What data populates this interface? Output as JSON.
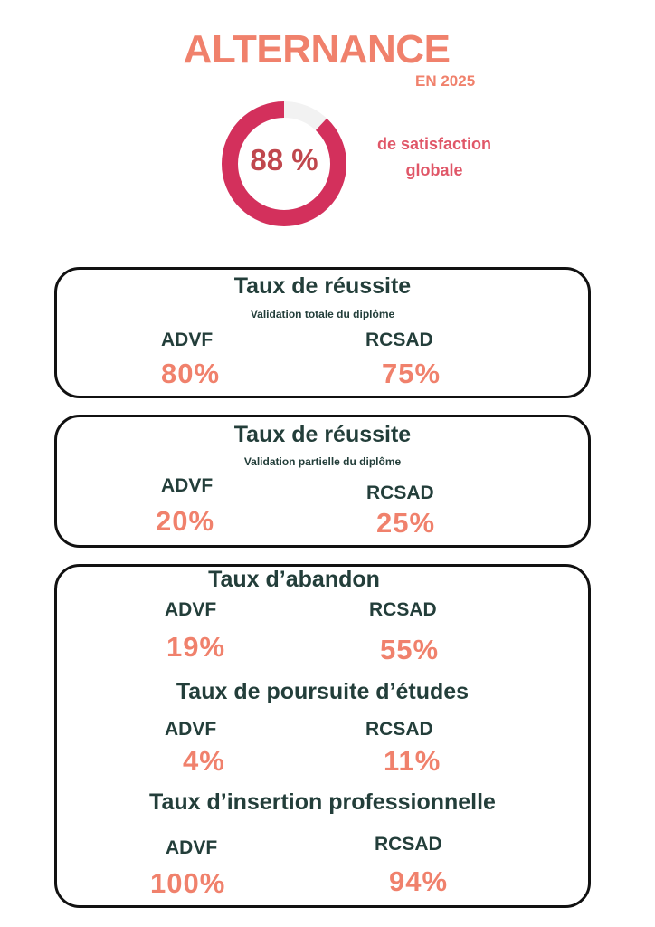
{
  "header": {
    "title": "ALTERNANCE",
    "year": "EN 2025"
  },
  "satisfaction": {
    "value": "88 %",
    "percent": 88,
    "label_line1": "de satisfaction",
    "label_line2": "globale",
    "color_ring": "#d3305c",
    "color_track": "#f2f2f2"
  },
  "cards": {
    "reussite_totale": {
      "heading": "Taux de réussite",
      "caption": "Validation totale du diplôme",
      "advf_label": "ADVF",
      "advf_value": "80%",
      "rcsad_label": "RCSAD",
      "rcsad_value": "75%"
    },
    "reussite_partielle": {
      "heading": "Taux de réussite",
      "caption": "Validation partielle du diplôme",
      "advf_label": "ADVF",
      "advf_value": "20%",
      "rcsad_label": "RCSAD",
      "rcsad_value": "25%"
    },
    "abandon": {
      "heading": "Taux d’abandon",
      "advf_label": "ADVF",
      "advf_value": "19%",
      "rcsad_label": "RCSAD",
      "rcsad_value": "55%"
    },
    "poursuite": {
      "heading": "Taux de poursuite d’études",
      "advf_label": "ADVF",
      "advf_value": "4%",
      "rcsad_label": "RCSAD",
      "rcsad_value": "11%"
    },
    "insertion": {
      "heading": "Taux d’insertion professionnelle",
      "advf_label": "ADVF",
      "advf_value": "100%",
      "rcsad_label": "RCSAD",
      "rcsad_value": "94%"
    }
  },
  "colors": {
    "accent_salmon": "#f0816c",
    "dark_green": "#233e3a",
    "border": "#111111"
  }
}
